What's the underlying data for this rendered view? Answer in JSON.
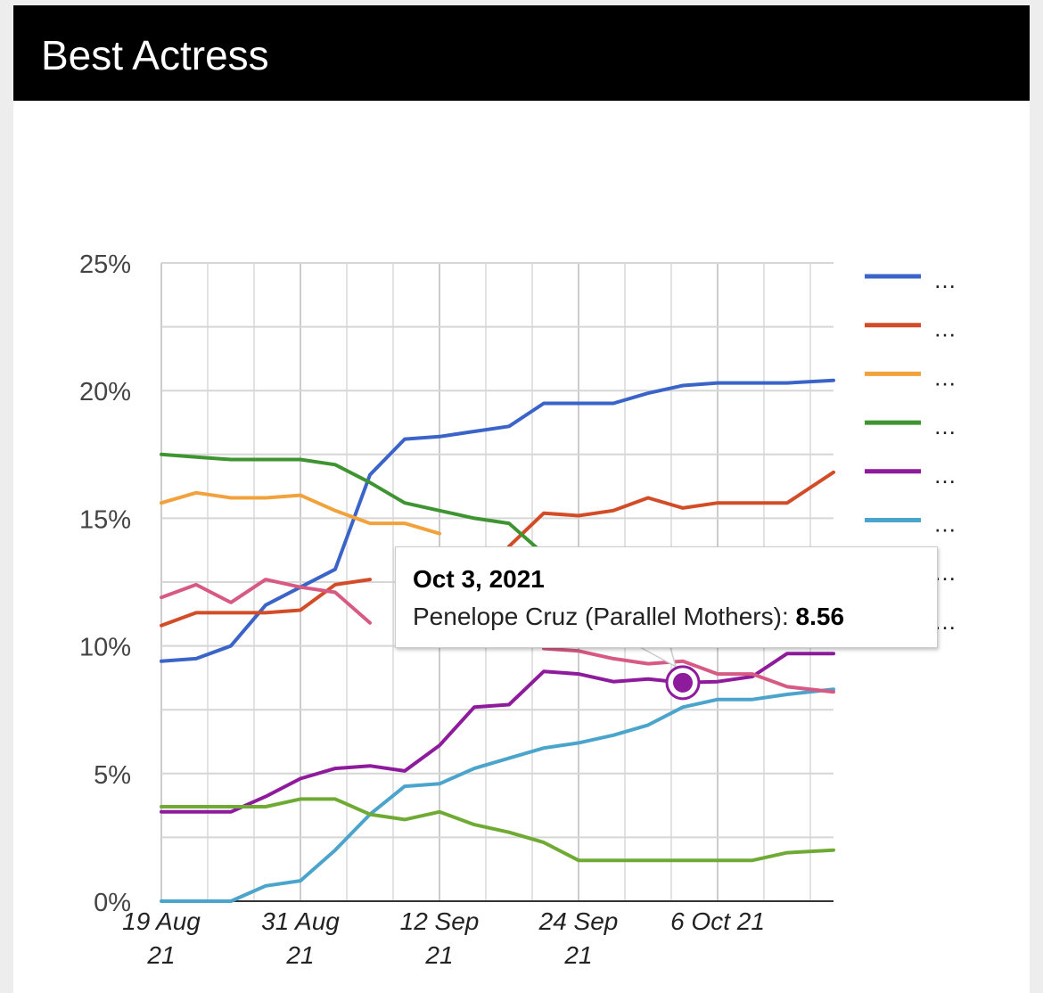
{
  "header": {
    "title": "Best Actress"
  },
  "tooltip": {
    "date": "Oct 3, 2021",
    "series_label": "Penelope Cruz (Parallel Mothers)",
    "separator": ": ",
    "value": "8.56"
  },
  "legend": {
    "ellipsis": "…"
  },
  "chart_data": {
    "type": "line",
    "title": "Best Actress",
    "xlabel": "",
    "ylabel": "",
    "ylim": [
      0,
      25
    ],
    "y_ticks": [
      0,
      5,
      10,
      15,
      20,
      25
    ],
    "y_tick_labels": [
      "0%",
      "5%",
      "10%",
      "15%",
      "20%",
      "25%"
    ],
    "x_range": [
      "2021-08-19",
      "2021-10-16"
    ],
    "x_tick_labels": [
      {
        "date": "2021-08-19",
        "lines": [
          "19 Aug",
          "21"
        ]
      },
      {
        "date": "2021-08-31",
        "lines": [
          "31 Aug",
          "21"
        ]
      },
      {
        "date": "2021-09-12",
        "lines": [
          "12 Sep",
          "21"
        ]
      },
      {
        "date": "2021-09-24",
        "lines": [
          "24 Sep",
          "21"
        ]
      },
      {
        "date": "2021-10-06",
        "lines": [
          "6 Oct 21"
        ]
      }
    ],
    "grid": true,
    "legend_position": "right",
    "x": [
      "2021-08-19",
      "2021-08-22",
      "2021-08-25",
      "2021-08-28",
      "2021-08-31",
      "2021-09-03",
      "2021-09-06",
      "2021-09-09",
      "2021-09-12",
      "2021-09-15",
      "2021-09-18",
      "2021-09-21",
      "2021-09-24",
      "2021-09-27",
      "2021-09-30",
      "2021-10-03",
      "2021-10-06",
      "2021-10-09",
      "2021-10-12",
      "2021-10-16"
    ],
    "series": [
      {
        "color": "#3b64c8",
        "values": [
          9.4,
          9.5,
          10.0,
          11.6,
          12.3,
          13.0,
          16.7,
          18.1,
          18.2,
          18.4,
          18.6,
          19.5,
          19.5,
          19.5,
          19.9,
          20.2,
          20.3,
          20.3,
          20.3,
          20.4
        ]
      },
      {
        "color": "#d24c28",
        "values": [
          10.8,
          11.3,
          11.3,
          11.3,
          11.4,
          12.4,
          12.6,
          null,
          null,
          null,
          13.9,
          15.2,
          15.1,
          15.3,
          15.8,
          15.4,
          15.6,
          15.6,
          15.6,
          16.8
        ]
      },
      {
        "color": "#f2a23c",
        "values": [
          15.6,
          16.0,
          15.8,
          15.8,
          15.9,
          15.3,
          14.8,
          14.8,
          14.4,
          null,
          null,
          null,
          null,
          null,
          null,
          null,
          null,
          null,
          null,
          null
        ]
      },
      {
        "color": "#3f9432",
        "values": [
          17.5,
          17.4,
          17.3,
          17.3,
          17.3,
          17.1,
          16.4,
          15.6,
          15.3,
          15.0,
          14.8,
          13.6,
          null,
          null,
          null,
          null,
          null,
          null,
          null,
          null
        ]
      },
      {
        "color": "#8e1a9c",
        "values": [
          3.5,
          3.5,
          3.5,
          4.1,
          4.8,
          5.2,
          5.3,
          5.1,
          6.1,
          7.6,
          7.7,
          9.0,
          8.9,
          8.6,
          8.7,
          8.56,
          8.6,
          8.8,
          9.7,
          9.7
        ]
      },
      {
        "color": "#4ba4cc",
        "values": [
          0.0,
          0.0,
          0.0,
          0.6,
          0.8,
          2.0,
          3.4,
          4.5,
          4.6,
          5.2,
          5.6,
          6.0,
          6.2,
          6.5,
          6.9,
          7.6,
          7.9,
          7.9,
          8.1,
          8.3
        ]
      },
      {
        "color": "#6fab34",
        "values": [
          3.7,
          3.7,
          3.7,
          3.7,
          4.0,
          4.0,
          3.4,
          3.2,
          3.5,
          3.0,
          2.7,
          2.3,
          1.6,
          1.6,
          1.6,
          1.6,
          1.6,
          1.6,
          1.9,
          2.0
        ]
      },
      {
        "color": "#d65a84",
        "values": [
          11.9,
          12.4,
          11.7,
          12.6,
          12.3,
          12.1,
          10.9,
          null,
          null,
          null,
          null,
          9.9,
          9.8,
          9.5,
          9.3,
          9.4,
          8.9,
          8.9,
          8.4,
          8.2
        ]
      }
    ],
    "highlight": {
      "series_index": 4,
      "x": "2021-10-03",
      "value": 8.56
    }
  }
}
